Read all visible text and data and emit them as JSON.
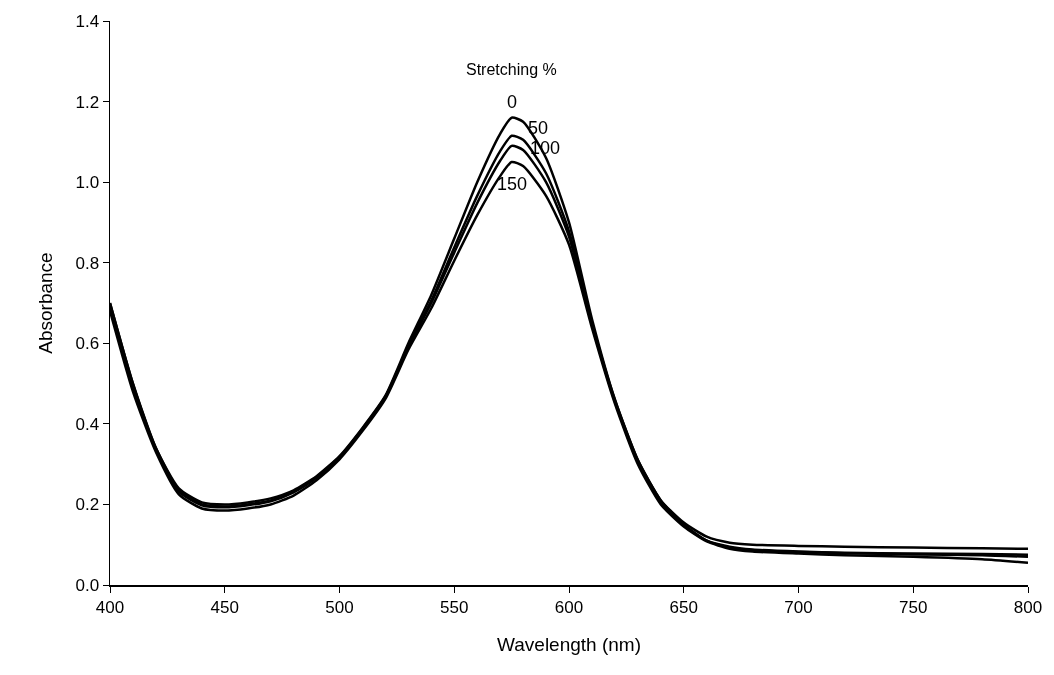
{
  "chart_data": {
    "type": "line",
    "xlabel": "Wavelength (nm)",
    "ylabel": "Absorbance",
    "legend_title": "Stretching %",
    "legend": false,
    "grid": false,
    "marker": "none",
    "line_style": "solid",
    "x": [
      400,
      410,
      420,
      430,
      440,
      450,
      460,
      470,
      480,
      490,
      500,
      510,
      520,
      530,
      540,
      550,
      560,
      570,
      575,
      580,
      590,
      600,
      610,
      620,
      630,
      640,
      650,
      660,
      670,
      680,
      700,
      720,
      750,
      780,
      800
    ],
    "xlim": [
      400,
      800
    ],
    "xticks": [
      400,
      450,
      500,
      550,
      600,
      650,
      700,
      750,
      800
    ],
    "ylim": [
      0,
      1.4
    ],
    "yticks": [
      {
        "value": 0,
        "label": "0.0"
      },
      0.2,
      0.4,
      0.6,
      0.8,
      {
        "value": 1,
        "label": "1.0"
      },
      1.2,
      1.4
    ],
    "series": [
      {
        "name": "0",
        "color": "#000000",
        "values": [
          0.7,
          0.5,
          0.34,
          0.24,
          0.205,
          0.2,
          0.205,
          0.215,
          0.235,
          0.27,
          0.32,
          0.39,
          0.47,
          0.6,
          0.72,
          0.86,
          1.0,
          1.12,
          1.16,
          1.15,
          1.06,
          0.9,
          0.66,
          0.46,
          0.31,
          0.21,
          0.155,
          0.12,
          0.105,
          0.1,
          0.097,
          0.095,
          0.093,
          0.091,
          0.09
        ]
      },
      {
        "name": "50",
        "color": "#000000",
        "values": [
          0.7,
          0.5,
          0.34,
          0.235,
          0.2,
          0.195,
          0.2,
          0.21,
          0.232,
          0.268,
          0.318,
          0.388,
          0.468,
          0.593,
          0.706,
          0.838,
          0.966,
          1.077,
          1.115,
          1.105,
          1.022,
          0.878,
          0.651,
          0.46,
          0.31,
          0.21,
          0.15,
          0.11,
          0.095,
          0.088,
          0.083,
          0.08,
          0.078,
          0.077,
          0.075
        ]
      },
      {
        "name": "100",
        "color": "#000000",
        "values": [
          0.69,
          0.49,
          0.335,
          0.232,
          0.198,
          0.193,
          0.198,
          0.208,
          0.23,
          0.266,
          0.316,
          0.386,
          0.466,
          0.59,
          0.7,
          0.825,
          0.948,
          1.053,
          1.09,
          1.08,
          1.0,
          0.865,
          0.646,
          0.455,
          0.305,
          0.205,
          0.148,
          0.11,
          0.093,
          0.086,
          0.082,
          0.079,
          0.076,
          0.074,
          0.07
        ]
      },
      {
        "name": "150",
        "color": "#000000",
        "values": [
          0.68,
          0.48,
          0.33,
          0.225,
          0.19,
          0.185,
          0.19,
          0.2,
          0.222,
          0.26,
          0.312,
          0.382,
          0.462,
          0.584,
          0.687,
          0.805,
          0.918,
          1.015,
          1.05,
          1.04,
          0.966,
          0.845,
          0.638,
          0.45,
          0.3,
          0.2,
          0.145,
          0.108,
          0.09,
          0.083,
          0.078,
          0.074,
          0.07,
          0.064,
          0.055
        ]
      }
    ]
  }
}
